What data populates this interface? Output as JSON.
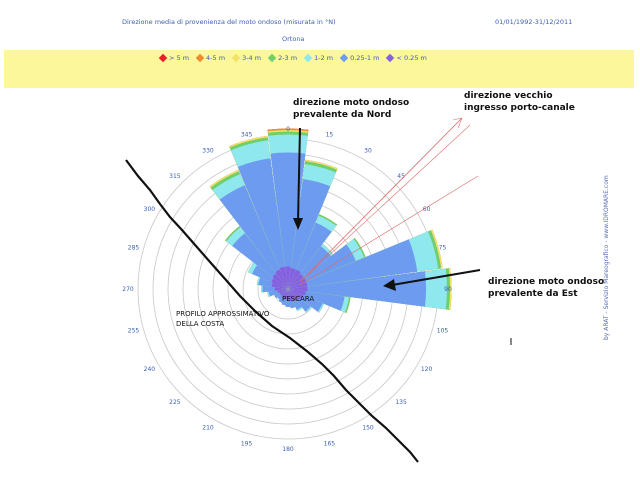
{
  "header": {
    "title": "Direzione media di provenienza del moto ondoso (misurata in °N)",
    "station": "Ortona",
    "period": "01/01/1992-31/12/2011"
  },
  "side_credit": "by ARAT - Servizio Mareografico - www.IDROMARE.com",
  "annotations": {
    "north": [
      "direzione moto ondoso",
      "prevalente da Nord"
    ],
    "east": [
      "direzione moto ondoso",
      "prevalente da Est"
    ],
    "old_channel": [
      "direzione vecchio",
      "ingresso porto-canale"
    ],
    "city": "PESCARA",
    "coast": [
      "PROFILO  APPROSSIMATIVO",
      "DELLA COSTA"
    ]
  },
  "colors": {
    "bin_gt5": "#e8202a",
    "bin_4_5": "#f08a30",
    "bin_3_4": "#f3e26a",
    "bin_2_3": "#6fcf6a",
    "bin_1_2": "#8ee8ee",
    "bin_025_1": "#6c9bf0",
    "bin_lt025": "#8560e0",
    "grid": "#c8c8c8",
    "tick": "#3a5fb0"
  },
  "chart_data": {
    "type": "polar-bar",
    "title": "",
    "angle_labels": [
      "0",
      "15",
      "30",
      "45",
      "60",
      "75",
      "90",
      "105",
      "120",
      "135",
      "150",
      "165",
      "180",
      "195",
      "210",
      "225",
      "240",
      "255",
      "270",
      "285",
      "300",
      "315",
      "330",
      "345"
    ],
    "legend": [
      "> 5 m",
      "4-5 m",
      "3-4 m",
      "2-3 m",
      "1-2 m",
      "0.25-1 m",
      "< 0.25 m"
    ],
    "ring_count": 10,
    "rmax": 10,
    "series": [
      {
        "name": "< 0.25 m",
        "values": [
          1.5,
          1.4,
          1.4,
          1.3,
          1.3,
          1.3,
          1.3,
          1.2,
          1.1,
          1.0,
          0.9,
          0.8,
          0.8,
          0.7,
          0.7,
          0.6,
          0.6,
          0.7,
          0.9,
          1.1,
          1.2,
          1.3,
          1.4,
          1.5
        ]
      },
      {
        "name": "0.25-1 m",
        "values": [
          7.6,
          6.0,
          3.4,
          2.3,
          3.6,
          7.4,
          7.9,
          2.6,
          1.4,
          0.9,
          0.6,
          0.5,
          0.4,
          0.4,
          0.3,
          0.3,
          0.4,
          0.6,
          0.8,
          0.9,
          1.4,
          3.4,
          6.1,
          7.3
        ]
      },
      {
        "name": "1-2 m",
        "values": [
          1.2,
          1.0,
          0.5,
          0.2,
          0.6,
          1.4,
          1.4,
          0.3,
          0.1,
          0.1,
          0.1,
          0.0,
          0.0,
          0.0,
          0.0,
          0.0,
          0.0,
          0.1,
          0.1,
          0.1,
          0.3,
          0.5,
          0.8,
          1.2
        ]
      },
      {
        "name": "2-3 m",
        "values": [
          0.2,
          0.2,
          0.1,
          0.0,
          0.1,
          0.2,
          0.2,
          0.1,
          0.0,
          0.0,
          0.0,
          0.0,
          0.0,
          0.0,
          0.0,
          0.0,
          0.0,
          0.0,
          0.0,
          0.0,
          0.0,
          0.1,
          0.2,
          0.2
        ]
      },
      {
        "name": "3-4 m",
        "values": [
          0.1,
          0.1,
          0.0,
          0.0,
          0.0,
          0.1,
          0.1,
          0.0,
          0.0,
          0.0,
          0.0,
          0.0,
          0.0,
          0.0,
          0.0,
          0.0,
          0.0,
          0.0,
          0.0,
          0.0,
          0.0,
          0.0,
          0.1,
          0.1
        ]
      },
      {
        "name": "4-5 m",
        "values": [
          0.1,
          0.0,
          0.0,
          0.0,
          0.0,
          0.0,
          0.0,
          0.0,
          0.0,
          0.0,
          0.0,
          0.0,
          0.0,
          0.0,
          0.0,
          0.0,
          0.0,
          0.0,
          0.0,
          0.0,
          0.0,
          0.0,
          0.0,
          0.0
        ]
      },
      {
        "name": "> 5 m",
        "values": [
          0.0,
          0.0,
          0.0,
          0.0,
          0.0,
          0.0,
          0.0,
          0.0,
          0.0,
          0.0,
          0.0,
          0.0,
          0.0,
          0.0,
          0.0,
          0.0,
          0.0,
          0.0,
          0.0,
          0.0,
          0.0,
          0.0,
          0.0,
          0.0
        ]
      }
    ]
  }
}
